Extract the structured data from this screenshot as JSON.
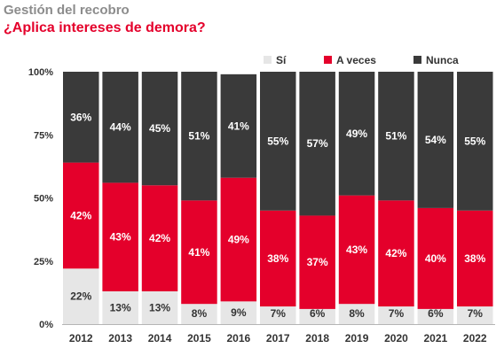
{
  "header": {
    "kicker": "Gestión del recobro",
    "title": "¿Aplica intereses de demora?"
  },
  "chart_data": {
    "type": "bar",
    "stacked": true,
    "categories": [
      "2012",
      "2013",
      "2014",
      "2015",
      "2016",
      "2017",
      "2018",
      "2019",
      "2020",
      "2021",
      "2022"
    ],
    "series": [
      {
        "name": "Sí",
        "color": "#e6e6e6",
        "label_color": "#333333",
        "values": [
          22,
          13,
          13,
          8,
          9,
          7,
          6,
          8,
          7,
          6,
          7
        ],
        "labels": [
          "22%",
          "13%",
          "13%",
          "8%",
          "9%",
          "7%",
          "6%",
          "8%",
          "7%",
          "6%",
          "7%"
        ]
      },
      {
        "name": "A veces",
        "color": "#e4002b",
        "label_color": "#ffffff",
        "values": [
          42,
          43,
          42,
          41,
          49,
          38,
          37,
          43,
          42,
          40,
          38
        ],
        "labels": [
          "42%",
          "43%",
          "42%",
          "41%",
          "49%",
          "38%",
          "37%",
          "43%",
          "42%",
          "40%",
          "38%"
        ]
      },
      {
        "name": "Nunca",
        "color": "#3a3a3a",
        "label_color": "#ffffff",
        "values": [
          36,
          44,
          45,
          51,
          41,
          55,
          57,
          49,
          51,
          54,
          55
        ],
        "labels": [
          "36%",
          "44%",
          "45%",
          "51%",
          "41%",
          "55%",
          "57%",
          "49%",
          "51%",
          "54%",
          "55%"
        ]
      }
    ],
    "yticks": [
      "0%",
      "25%",
      "50%",
      "75%",
      "100%"
    ],
    "ylim": [
      0,
      100
    ],
    "grid": false,
    "legend": "top-right"
  }
}
